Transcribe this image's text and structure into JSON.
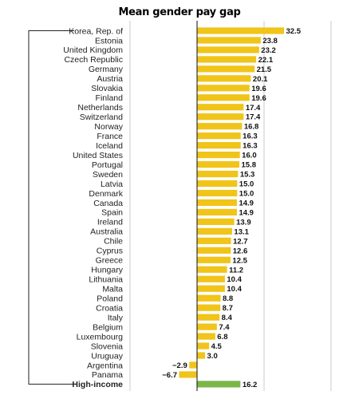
{
  "chart_data": {
    "type": "bar",
    "orientation": "horizontal",
    "title": "Mean gender pay gap",
    "xlabel": "",
    "ylabel": "",
    "xlim": [
      -10,
      33
    ],
    "grid": true,
    "legend": "none",
    "colors": {
      "bar": "#f0c419",
      "highlight": "#7ab648",
      "axis": "#222222",
      "grid": "#bfbfbf"
    },
    "categories": [
      "Korea, Rep. of",
      "Estonia",
      "United Kingdom",
      "Czech Republic",
      "Germany",
      "Austria",
      "Slovakia",
      "Finland",
      "Netherlands",
      "Switzerland",
      "Norway",
      "France",
      "Iceland",
      "United States",
      "Portugal",
      "Sweden",
      "Latvia",
      "Denmark",
      "Canada",
      "Spain",
      "Ireland",
      "Australia",
      "Chile",
      "Cyprus",
      "Greece",
      "Hungary",
      "Lithuania",
      "Malta",
      "Poland",
      "Croatia",
      "Italy",
      "Belgium",
      "Luxembourg",
      "Slovenia",
      "Uruguay",
      "Argentina",
      "Panama",
      "High-income"
    ],
    "values": [
      32.5,
      23.8,
      23.2,
      22.1,
      21.5,
      20.1,
      19.6,
      19.6,
      17.4,
      17.4,
      16.8,
      16.3,
      16.3,
      16.0,
      15.8,
      15.3,
      15.0,
      15.0,
      14.9,
      14.9,
      13.9,
      13.1,
      12.7,
      12.6,
      12.5,
      11.2,
      10.4,
      10.4,
      8.8,
      8.7,
      8.4,
      7.4,
      6.8,
      4.5,
      3.0,
      -2.9,
      -6.7,
      16.2
    ],
    "value_labels": [
      "32.5",
      "23.8",
      "23.2",
      "22.1",
      "21.5",
      "20.1",
      "19.6",
      "19.6",
      "17.4",
      "17.4",
      "16.8",
      "16.3",
      "16.3",
      "16.0",
      "15.8",
      "15.3",
      "15.0",
      "15.0",
      "14.9",
      "14.9",
      "13.9",
      "13.1",
      "12.7",
      "12.6",
      "12.5",
      "11.2",
      "10.4",
      "10.4",
      "8.8",
      "8.7",
      "8.4",
      "7.4",
      "6.8",
      "4.5",
      "3.0",
      "−2.9",
      "−6.7",
      "16.2"
    ],
    "highlight_categories": [
      "High-income"
    ]
  }
}
